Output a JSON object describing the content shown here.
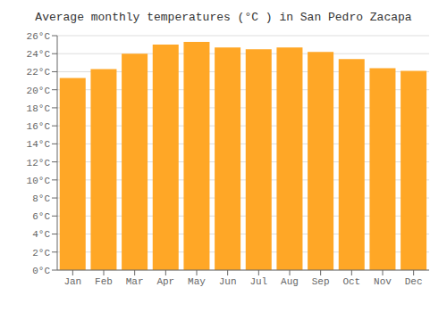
{
  "chart_data": {
    "type": "bar",
    "title": "Average monthly temperatures (°C ) in San Pedro Zacapa",
    "categories": [
      "Jan",
      "Feb",
      "Mar",
      "Apr",
      "May",
      "Jun",
      "Jul",
      "Aug",
      "Sep",
      "Oct",
      "Nov",
      "Dec"
    ],
    "values": [
      21.3,
      22.3,
      24.0,
      25.0,
      25.3,
      24.7,
      24.5,
      24.7,
      24.2,
      23.4,
      22.4,
      22.1
    ],
    "color": "#FFA726",
    "ylim": [
      0,
      26
    ],
    "yticks": [
      {
        "value": 0,
        "label": "0°C"
      },
      {
        "value": 2,
        "label": "2°C"
      },
      {
        "value": 4,
        "label": "4°C"
      },
      {
        "value": 6,
        "label": "6°C"
      },
      {
        "value": 8,
        "label": "8°C"
      },
      {
        "value": 10,
        "label": "10°C"
      },
      {
        "value": 12,
        "label": "12°C"
      },
      {
        "value": 14,
        "label": "14°C"
      },
      {
        "value": 16,
        "label": "16°C"
      },
      {
        "value": 18,
        "label": "18°C"
      },
      {
        "value": 20,
        "label": "20°C"
      },
      {
        "value": 22,
        "label": "22°C"
      },
      {
        "value": 24,
        "label": "24°C"
      },
      {
        "value": 26,
        "label": "26°C"
      }
    ],
    "grid": true
  }
}
